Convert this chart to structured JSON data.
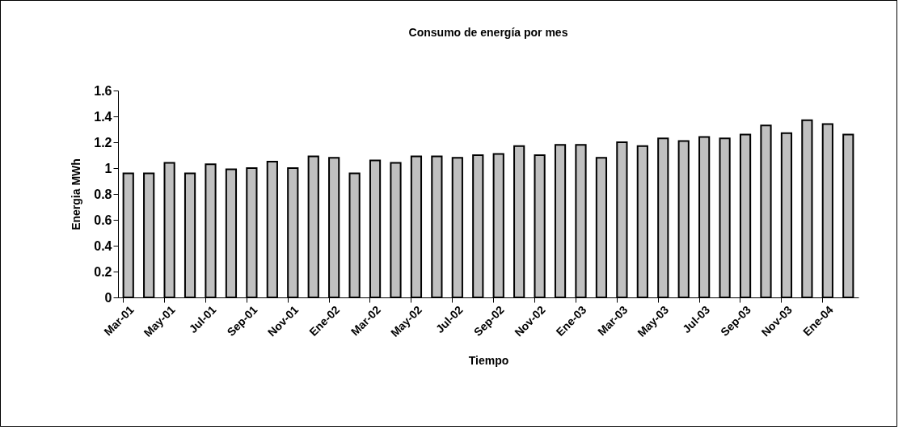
{
  "chart_data": {
    "type": "bar",
    "title": "Consumo de energía por mes",
    "xlabel": "Tiempo",
    "ylabel": "Energia MWh",
    "categories": [
      "Mar-01",
      null,
      "May-01",
      null,
      "Jul-01",
      null,
      "Sep-01",
      null,
      "Nov-01",
      null,
      "Ene-02",
      null,
      "Mar-02",
      null,
      "May-02",
      null,
      "Jul-02",
      null,
      "Sep-02",
      null,
      "Nov-02",
      null,
      "Ene-03",
      null,
      "Mar-03",
      null,
      "May-03",
      null,
      "Jul-03",
      null,
      "Sep-03",
      null,
      "Nov-03",
      null,
      "Ene-04",
      null
    ],
    "values": [
      0.96,
      0.96,
      1.04,
      0.96,
      1.03,
      0.99,
      1.0,
      1.05,
      1.0,
      1.09,
      1.08,
      0.96,
      1.06,
      1.04,
      1.09,
      1.09,
      1.08,
      1.1,
      1.11,
      1.17,
      1.1,
      1.18,
      1.18,
      1.08,
      1.2,
      1.17,
      1.23,
      1.21,
      1.24,
      1.23,
      1.26,
      1.33,
      1.27,
      1.37,
      1.34,
      1.26
    ],
    "color": "#c0c0c0",
    "ylim": [
      0,
      1.6
    ],
    "yticks": [
      0,
      0.2,
      0.4,
      0.6,
      0.8,
      1,
      1.2,
      1.4,
      1.6
    ]
  }
}
